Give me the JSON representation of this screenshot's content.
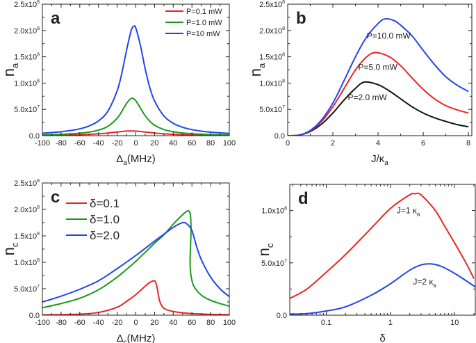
{
  "chart_data": [
    {
      "panel": "a",
      "type": "line",
      "xlabel": {
        "main": "Δ",
        "sub": "a",
        "rest": "(MHz)"
      },
      "ylabel": {
        "main": "n",
        "sub": "a"
      },
      "xlim": [
        -100,
        100
      ],
      "ylim": [
        0,
        250000000.0
      ],
      "xscale": "linear",
      "xticks": [
        {
          "v": -100,
          "l": "-100"
        },
        {
          "v": -80,
          "l": "-80"
        },
        {
          "v": -60,
          "l": "-60"
        },
        {
          "v": -40,
          "l": "-40"
        },
        {
          "v": -20,
          "l": "-20"
        },
        {
          "v": 0,
          "l": "0"
        },
        {
          "v": 20,
          "l": "20"
        },
        {
          "v": 40,
          "l": "40"
        },
        {
          "v": 60,
          "l": "60"
        },
        {
          "v": 80,
          "l": "80"
        },
        {
          "v": 100,
          "l": "100"
        }
      ],
      "xminor": [
        -90,
        -70,
        -50,
        -30,
        -10,
        10,
        30,
        50,
        70,
        90
      ],
      "yticks": [
        {
          "v": 0,
          "l": "0.0",
          "e": ""
        },
        {
          "v": 50000000.0,
          "l": "5.0x10",
          "e": "7"
        },
        {
          "v": 100000000.0,
          "l": "1.0x10",
          "e": "8"
        },
        {
          "v": 150000000.0,
          "l": "1.5x10",
          "e": "8"
        },
        {
          "v": 200000000.0,
          "l": "2.0x10",
          "e": "8"
        },
        {
          "v": 250000000.0,
          "l": "2.5x10",
          "e": "8"
        }
      ],
      "yminor": [
        25000000.0,
        75000000.0,
        125000000.0,
        175000000.0,
        225000000.0
      ],
      "legend": {
        "placement": "top-right"
      },
      "series": [
        {
          "name": "P=0.1 mW",
          "color": "#ee2222",
          "x": [
            -100,
            -80,
            -60,
            -40,
            -30,
            -20,
            -10,
            -5,
            0,
            10,
            20,
            30,
            40,
            60,
            80,
            100
          ],
          "y": [
            720000.0,
            1100000.0,
            1850000.0,
            3500000.0,
            5000000.0,
            7000000.0,
            8700000.0,
            9000000.0,
            8700000.0,
            7000000.0,
            5000000.0,
            3500000.0,
            2500000.0,
            1400000.0,
            880000.0,
            600000.0
          ]
        },
        {
          "name": "P=1.0 mW",
          "color": "#1a9a1a",
          "x": [
            -100,
            -90,
            -80,
            -70,
            -60,
            -50,
            -40,
            -30,
            -20,
            -15,
            -10,
            -5,
            -2,
            0,
            5,
            10,
            15,
            20,
            30,
            40,
            50,
            60,
            70,
            80,
            90,
            100
          ],
          "y": [
            1690000.0,
            2100000.0,
            2660000.0,
            3490000.0,
            4750000.0,
            6800000.0,
            10500000.0,
            17700000.0,
            33200000.0,
            46200000.0,
            61200000.0,
            70700000.0,
            69800000.0,
            66300000.0,
            52200000.0,
            37900000.0,
            27300000.0,
            19900000.0,
            11600000.0,
            7400000.0,
            5100000.0,
            3700000.0,
            2800000.0,
            2200000.0,
            1760000.0,
            1450000.0
          ]
        },
        {
          "name": "P=10 mW",
          "color": "#2244ee",
          "x": [
            -100,
            -90,
            -80,
            -70,
            -60,
            -50,
            -40,
            -30,
            -20,
            -15,
            -10,
            -5,
            -2,
            0,
            5,
            10,
            15,
            20,
            30,
            40,
            50,
            60,
            70,
            80,
            90,
            100
          ],
          "y": [
            4800000.0,
            5900000.0,
            7400000.0,
            9700000.0,
            13000000.0,
            18500000.0,
            28000000.0,
            46400000.0,
            85300000.0,
            118800000.0,
            161900000.0,
            200000000.0,
            208000000.0,
            204400000.0,
            170800000.0,
            126800000.0,
            91000000.0,
            66000000.0,
            37500000.0,
            23500000.0,
            16000000.0,
            11500000.0,
            8650000.0,
            6700000.0,
            5400000.0,
            4400000.0
          ]
        }
      ],
      "annotations": []
    },
    {
      "panel": "b",
      "type": "line",
      "xlabel": {
        "main": "J/κ",
        "sub": "a",
        "rest": ""
      },
      "ylabel": {
        "main": "n",
        "sub": "a"
      },
      "xlim": [
        0,
        8.15
      ],
      "ylim": [
        0,
        250000000.0
      ],
      "xscale": "linear",
      "xticks": [
        {
          "v": 0,
          "l": "0"
        },
        {
          "v": 2,
          "l": "2"
        },
        {
          "v": 4,
          "l": "4"
        },
        {
          "v": 6,
          "l": "6"
        },
        {
          "v": 8,
          "l": "8"
        }
      ],
      "xminor": [
        1,
        3,
        5,
        7
      ],
      "yticks": [
        {
          "v": 0,
          "l": "0.0",
          "e": ""
        },
        {
          "v": 50000000.0,
          "l": "5.0x10",
          "e": "7"
        },
        {
          "v": 100000000.0,
          "l": "1.0x10",
          "e": "8"
        },
        {
          "v": 150000000.0,
          "l": "1.5x10",
          "e": "8"
        },
        {
          "v": 200000000.0,
          "l": "2.0x10",
          "e": "8"
        },
        {
          "v": 250000000.0,
          "l": "2.5x10",
          "e": "8"
        }
      ],
      "yminor": [
        25000000.0,
        75000000.0,
        125000000.0,
        175000000.0,
        225000000.0
      ],
      "legend": null,
      "series": [
        {
          "name": "P=2.0 mW",
          "color": "#111111",
          "x": [
            0,
            0.5,
            1,
            1.5,
            2,
            2.5,
            3,
            3.4,
            4,
            4.5,
            5,
            5.5,
            6,
            6.5,
            7,
            7.5,
            8
          ],
          "y": [
            0,
            1000000.0,
            8000000.0,
            22000000.0,
            43000000.0,
            68000000.0,
            90000000.0,
            102000000.0,
            97000000.0,
            85000000.0,
            70000000.0,
            55000000.0,
            43000000.0,
            34000000.0,
            27000000.0,
            21000000.0,
            17000000.0
          ]
        },
        {
          "name": "P=5.0 mW",
          "color": "#ee2222",
          "x": [
            0,
            0.5,
            1,
            1.5,
            2,
            2.5,
            3,
            3.5,
            3.9,
            4.5,
            5,
            5.5,
            6,
            6.5,
            7,
            7.5,
            8
          ],
          "y": [
            0,
            1000000.0,
            9000000.0,
            27000000.0,
            55000000.0,
            90000000.0,
            125000000.0,
            150000000.0,
            158000000.0,
            150000000.0,
            133000000.0,
            110000000.0,
            88000000.0,
            70000000.0,
            57000000.0,
            49000000.0,
            43000000.0
          ]
        },
        {
          "name": "P=10.0 mW",
          "color": "#2244ee",
          "x": [
            0,
            0.5,
            1,
            1.5,
            2,
            2.5,
            3,
            3.5,
            4,
            4.3,
            4.7,
            5,
            5.5,
            6,
            6.5,
            7,
            7.5,
            8
          ],
          "y": [
            0,
            1000000.0,
            10000000.0,
            30000000.0,
            62000000.0,
            105000000.0,
            150000000.0,
            188000000.0,
            213000000.0,
            222000000.0,
            219000000.0,
            210000000.0,
            190000000.0,
            162000000.0,
            135000000.0,
            112000000.0,
            96000000.0,
            84000000.0
          ]
        }
      ],
      "annotations": [
        {
          "text": "P=10.0 mW",
          "x": 3.5,
          "y": 190000000.0
        },
        {
          "text": "P=5.0 mW",
          "x": 3.12,
          "y": 130000000.0
        },
        {
          "text": "P=2.0 mW",
          "x": 2.66,
          "y": 73000000.0
        }
      ]
    },
    {
      "panel": "c",
      "type": "line",
      "xlabel": {
        "main": "Δ",
        "sub": "c",
        "rest": "(MHz)"
      },
      "ylabel": {
        "main": "n",
        "sub": "c"
      },
      "xlim": [
        -100,
        100
      ],
      "ylim": [
        0,
        250000000.0
      ],
      "xscale": "linear",
      "xticks": [
        {
          "v": -100,
          "l": "-100"
        },
        {
          "v": -80,
          "l": "-80"
        },
        {
          "v": -60,
          "l": "-60"
        },
        {
          "v": -40,
          "l": "-40"
        },
        {
          "v": -20,
          "l": "-20"
        },
        {
          "v": 0,
          "l": "0"
        },
        {
          "v": 20,
          "l": "20"
        },
        {
          "v": 40,
          "l": "40"
        },
        {
          "v": 60,
          "l": "60"
        },
        {
          "v": 80,
          "l": "80"
        },
        {
          "v": 100,
          "l": "100"
        }
      ],
      "xminor": [
        -90,
        -70,
        -50,
        -30,
        -10,
        10,
        30,
        50,
        70,
        90
      ],
      "yticks": [
        {
          "v": 0,
          "l": "0.0",
          "e": ""
        },
        {
          "v": 50000000.0,
          "l": "5.0x10",
          "e": "7"
        },
        {
          "v": 100000000.0,
          "l": "1.0x10",
          "e": "8"
        },
        {
          "v": 150000000.0,
          "l": "1.5x10",
          "e": "8"
        },
        {
          "v": 200000000.0,
          "l": "2.0x10",
          "e": "8"
        },
        {
          "v": 250000000.0,
          "l": "2.5x10",
          "e": "8"
        }
      ],
      "yminor": [
        25000000.0,
        75000000.0,
        125000000.0,
        175000000.0,
        225000000.0
      ],
      "legend": {
        "placement": "upper-left"
      },
      "series": [
        {
          "name": "δ=0.1",
          "color": "#ee2222",
          "x": [
            -100,
            -80,
            -60,
            -40,
            -20,
            -10,
            0,
            10,
            15,
            19,
            21,
            23,
            25,
            28,
            32,
            40,
            50,
            60,
            80,
            100
          ],
          "y": [
            500000.0,
            1000000.0,
            2000000.0,
            5000000.0,
            15000000.0,
            26000000.0,
            39000000.0,
            55000000.0,
            62000000.0,
            65000000.0,
            63000000.0,
            50000000.0,
            30000000.0,
            17000000.0,
            11000000.0,
            7000000.0,
            4500000.0,
            3000000.0,
            1500000.0,
            1000000.0
          ]
        },
        {
          "name": "δ=1.0",
          "color": "#1a9a1a",
          "x": [
            -100,
            -80,
            -60,
            -40,
            -20,
            0,
            20,
            30,
            40,
            50,
            55,
            57,
            58.5,
            59,
            58.5,
            58,
            59,
            62,
            70,
            80,
            90,
            100
          ],
          "y": [
            14000000.0,
            22000000.0,
            32000000.0,
            48000000.0,
            72000000.0,
            102000000.0,
            136000000.0,
            152000000.0,
            172000000.0,
            190000000.0,
            197000000.0,
            196000000.0,
            188000000.0,
            160000000.0,
            130000000.0,
            100000000.0,
            75000000.0,
            55000000.0,
            38000000.0,
            28000000.0,
            22000000.0,
            17000000.0
          ]
        },
        {
          "name": "δ=2.0",
          "color": "#2244ee",
          "x": [
            -100,
            -80,
            -60,
            -40,
            -20,
            0,
            20,
            30,
            40,
            50,
            55,
            60,
            65,
            70,
            80,
            90,
            100
          ],
          "y": [
            25000000.0,
            36000000.0,
            49000000.0,
            65000000.0,
            88000000.0,
            113000000.0,
            140000000.0,
            153000000.0,
            166000000.0,
            175000000.0,
            172000000.0,
            160000000.0,
            130000000.0,
            105000000.0,
            72000000.0,
            50000000.0,
            35000000.0
          ]
        }
      ],
      "annotations": []
    },
    {
      "panel": "d",
      "type": "line",
      "xlabel": {
        "main": "δ",
        "sub": "",
        "rest": ""
      },
      "ylabel": {
        "main": "n",
        "sub": "c"
      },
      "xlim": [
        0.027,
        21
      ],
      "ylim": [
        0,
        125000000.0
      ],
      "xscale": "log",
      "xticks": [
        {
          "v": 0.1,
          "l": "0.1"
        },
        {
          "v": 1,
          "l": "1"
        },
        {
          "v": 10,
          "l": "10"
        }
      ],
      "xminor": [
        0.03,
        0.04,
        0.05,
        0.06,
        0.07,
        0.08,
        0.09,
        0.2,
        0.3,
        0.4,
        0.5,
        0.6,
        0.7,
        0.8,
        0.9,
        2,
        3,
        4,
        5,
        6,
        7,
        8,
        9,
        20
      ],
      "yticks": [
        {
          "v": 0,
          "l": "0.0",
          "e": ""
        },
        {
          "v": 50000000.0,
          "l": "5.0x10",
          "e": "7"
        },
        {
          "v": 100000000.0,
          "l": "1.0x10",
          "e": "8"
        }
      ],
      "yminor": [
        25000000.0,
        75000000.0
      ],
      "legend": null,
      "series": [
        {
          "name": "J=1 κa",
          "color": "#ee2222",
          "x": [
            0.027,
            0.05,
            0.1,
            0.2,
            0.5,
            1,
            2,
            2.4,
            3,
            5,
            7,
            10,
            15,
            20
          ],
          "y": [
            16000000.0,
            25000000.0,
            41000000.0,
            58000000.0,
            83000000.0,
            102000000.0,
            115000000.0,
            116000000.0,
            115000000.0,
            100000000.0,
            85000000.0,
            69000000.0,
            50000000.0,
            35000000.0
          ]
        },
        {
          "name": "J=2 κa",
          "color": "#2244ee",
          "x": [
            0.027,
            0.05,
            0.1,
            0.2,
            0.5,
            1,
            2,
            3,
            4.2,
            6,
            10,
            15,
            21
          ],
          "y": [
            1000000.0,
            1500000.0,
            4000000.0,
            8000000.0,
            19000000.0,
            30000000.0,
            43000000.0,
            48000000.0,
            49000000.0,
            47000000.0,
            40000000.0,
            33000000.0,
            27000000.0
          ]
        }
      ],
      "annotations": [
        {
          "text": "J=1 κ",
          "sub": "a",
          "x": 1.25,
          "y": 100000000.0
        },
        {
          "text": "J=2 κ",
          "sub": "a",
          "x": 2.25,
          "y": 32000000.0
        }
      ]
    }
  ]
}
